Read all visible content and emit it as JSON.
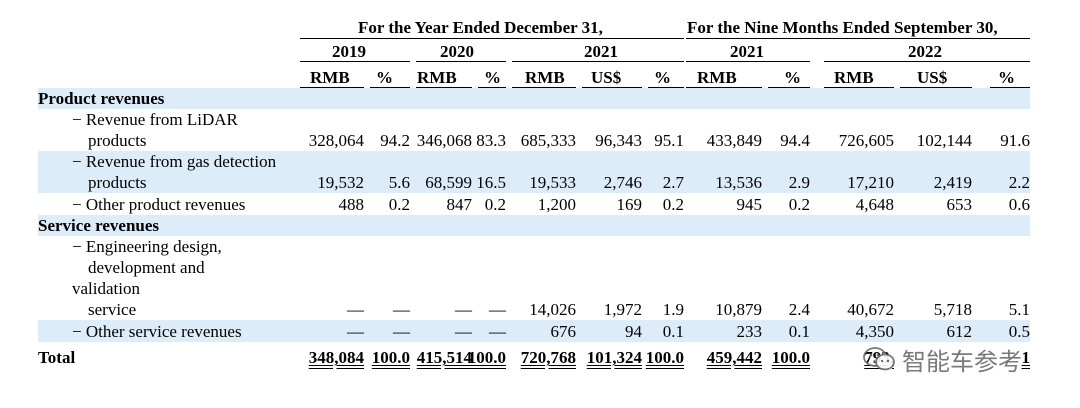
{
  "header": {
    "group1": "For the Year Ended December 31,",
    "group2": "For the Nine Months Ended September 30,",
    "years": [
      "2019",
      "2020",
      "2021",
      "2021",
      "2022"
    ],
    "units": [
      "RMB",
      "%",
      "RMB",
      "%",
      "RMB",
      "US$",
      "%",
      "RMB",
      "%",
      "RMB",
      "US$",
      "%"
    ]
  },
  "sections": {
    "product": "Product revenues",
    "service": "Service revenues"
  },
  "rows": {
    "lidar": {
      "label": [
        "− Revenue from LiDAR",
        "products"
      ],
      "values": [
        "328,064",
        "94.2",
        "346,068",
        "83.3",
        "685,333",
        "96,343",
        "95.1",
        "433,849",
        "94.4",
        "726,605",
        "102,144",
        "91.6"
      ]
    },
    "gas": {
      "label": [
        "− Revenue from gas detection",
        "products"
      ],
      "values": [
        "19,532",
        "5.6",
        "68,599",
        "16.5",
        "19,533",
        "2,746",
        "2.7",
        "13,536",
        "2.9",
        "17,210",
        "2,419",
        "2.2"
      ]
    },
    "other_product": {
      "label": [
        "− Other product revenues"
      ],
      "values": [
        "488",
        "0.2",
        "847",
        "0.2",
        "1,200",
        "169",
        "0.2",
        "945",
        "0.2",
        "4,648",
        "653",
        "0.6"
      ]
    },
    "engineering": {
      "label": [
        "− Engineering design,",
        "development and",
        "validation",
        "service"
      ],
      "values": [
        "—",
        "—",
        "—",
        "—",
        "14,026",
        "1,972",
        "1.9",
        "10,879",
        "2.4",
        "40,672",
        "5,718",
        "5.1"
      ]
    },
    "other_service": {
      "label": [
        "− Other service revenues"
      ],
      "values": [
        "—",
        "—",
        "—",
        "—",
        "676",
        "94",
        "0.1",
        "233",
        "0.1",
        "4,350",
        "612",
        "0.5"
      ]
    },
    "total": {
      "label": [
        "Total"
      ],
      "values": [
        "348,084",
        "100.0",
        "415,514",
        "100.0",
        "720,768",
        "101,324",
        "100.0",
        "459,442",
        "100.0",
        "793,",
        "",
        "1"
      ]
    }
  },
  "watermark": {
    "text": "智能车参考",
    "icon": "wechat-icon"
  }
}
